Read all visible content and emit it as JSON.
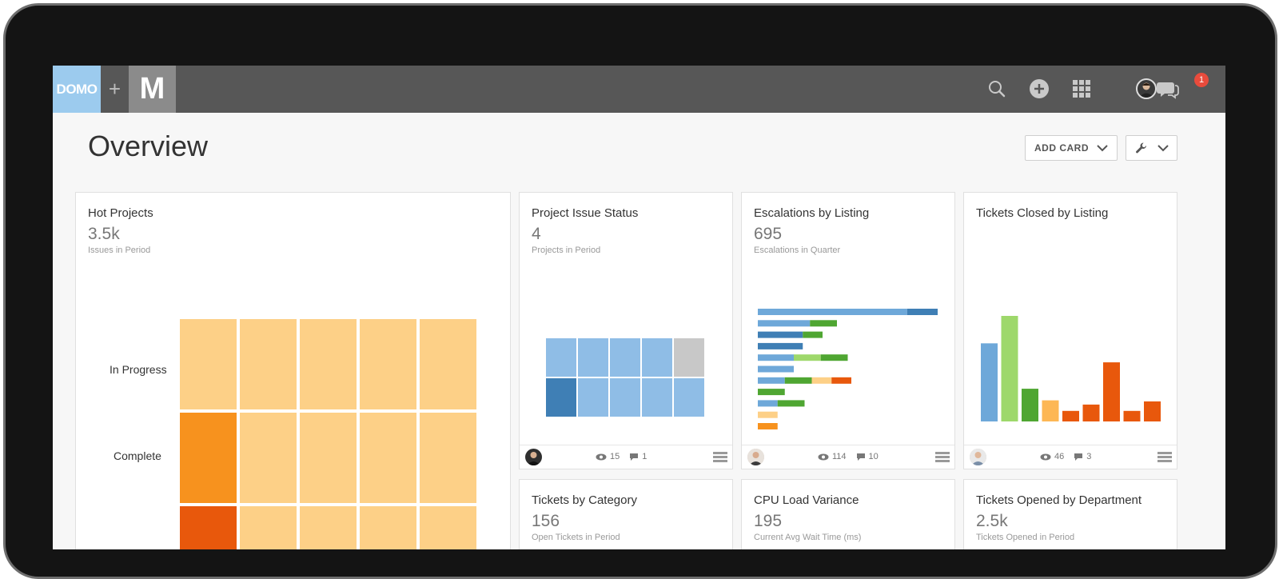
{
  "topbar": {
    "brand_logo": "DOMO",
    "plus": "+",
    "partner_logo": "M",
    "icons": [
      "search-icon",
      "add-icon",
      "grid-icon",
      "avatar",
      "chat-icon"
    ],
    "notification_count": "1"
  },
  "page": {
    "title": "Overview",
    "add_card_label": "ADD CARD"
  },
  "colors": {
    "topbar": "#575757",
    "domo_blue": "#9ccbee",
    "light_orange": "#fdd087",
    "orange": "#f7921e",
    "dark_orange": "#e8580c",
    "blue": "#6ea8d9",
    "light_blue": "#8fbde6",
    "dark_blue": "#3f7fb5",
    "green": "#4fa632",
    "light_green": "#9ed86b",
    "gray": "#c8c8c8"
  },
  "cards": {
    "hot_projects": {
      "title": "Hot Projects",
      "value": "3.5k",
      "subtitle": "Issues in Period",
      "rows": [
        "In Progress",
        "Complete"
      ]
    },
    "project_issue_status": {
      "title": "Project Issue Status",
      "value": "4",
      "subtitle": "Projects in Period",
      "views": "15",
      "comments": "1"
    },
    "escalations_by_listing": {
      "title": "Escalations by Listing",
      "value": "695",
      "subtitle": "Escalations in Quarter",
      "views": "114",
      "comments": "10"
    },
    "tickets_closed_by_listing": {
      "title": "Tickets Closed by Listing",
      "views": "46",
      "comments": "3"
    },
    "tickets_by_category": {
      "title": "Tickets by Category",
      "value": "156",
      "subtitle": "Open Tickets in Period"
    },
    "cpu_load_variance": {
      "title": "CPU Load Variance",
      "value": "195",
      "subtitle": "Current Avg Wait Time (ms)"
    },
    "tickets_opened_by_department": {
      "title": "Tickets Opened by Department",
      "value": "2.5k",
      "subtitle": "Tickets Opened in Period"
    }
  },
  "chart_data": [
    {
      "type": "bar",
      "orientation": "horizontal",
      "card": "escalations_by_listing",
      "segments_relative": [
        [
          [
            "#6ea8d9",
            0.83
          ],
          [
            "#3f7fb5",
            0.17
          ]
        ],
        [
          [
            "#6ea8d9",
            0.29
          ],
          [
            "#4fa632",
            0.15
          ]
        ],
        [
          [
            "#3f7fb5",
            0.25
          ],
          [
            "#4fa632",
            0.11
          ]
        ],
        [
          [
            "#3f7fb5",
            0.25
          ]
        ],
        [
          [
            "#6ea8d9",
            0.2
          ],
          [
            "#9ed86b",
            0.15
          ],
          [
            "#4fa632",
            0.15
          ]
        ],
        [
          [
            "#6ea8d9",
            0.2
          ]
        ],
        [
          [
            "#6ea8d9",
            0.15
          ],
          [
            "#4fa632",
            0.15
          ],
          [
            "#fdd087",
            0.11
          ],
          [
            "#e8580c",
            0.11
          ]
        ],
        [
          [
            "#4fa632",
            0.15
          ]
        ],
        [
          [
            "#6ea8d9",
            0.11
          ],
          [
            "#4fa632",
            0.15
          ]
        ],
        [
          [
            "#fdd087",
            0.11
          ]
        ],
        [
          [
            "#f7921e",
            0.11
          ]
        ]
      ]
    },
    {
      "type": "bar",
      "card": "tickets_closed_by_listing",
      "values_relative": [
        0.74,
        1.0,
        0.31,
        0.2,
        0.1,
        0.16,
        0.56,
        0.1,
        0.19
      ],
      "colors": [
        "#6ea8d9",
        "#9ed86b",
        "#4fa632",
        "#fdb755",
        "#e8580c",
        "#e8580c",
        "#e8580c",
        "#e8580c",
        "#e8580c"
      ]
    }
  ]
}
